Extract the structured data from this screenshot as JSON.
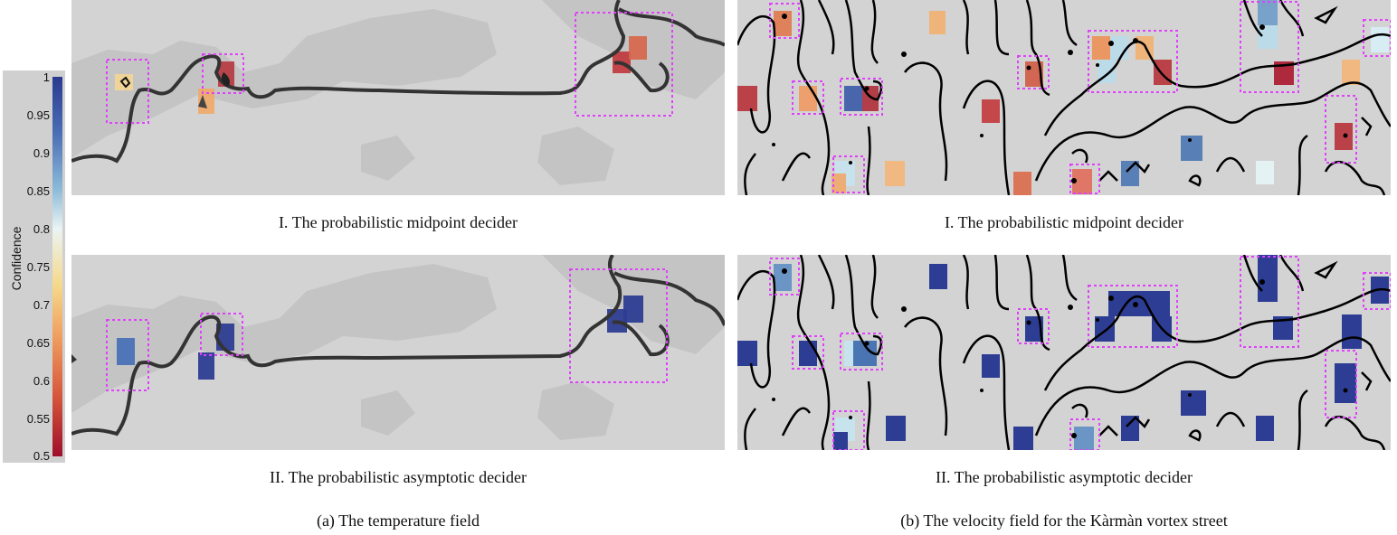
{
  "colorbar": {
    "title": "Confidence",
    "ticks": [
      "1",
      "0.95",
      "0.9",
      "0.85",
      "0.8",
      "0.75",
      "0.7",
      "0.65",
      "0.6",
      "0.55",
      "0.5"
    ]
  },
  "panels": {
    "a1_caption": "I. The probabilistic midpoint decider",
    "a2_caption": "II. The probabilistic asymptotic decider",
    "b1_caption": "I. The probabilistic midpoint decider",
    "b2_caption": "II. The probabilistic asymptotic decider"
  },
  "subfigures": {
    "a_caption": "(a) The temperature field",
    "b_caption": "(b) The velocity field for the Kàrmàn vortex street"
  },
  "colors": {
    "background_panel": "#d3d3d3",
    "land": "#c4c4c4",
    "highlight_box": "#e040fb",
    "contour_dark": "#333333",
    "contour_black": "#000000",
    "high_confidence": "#2f3a8f",
    "low_confidence": "#a3162b"
  }
}
